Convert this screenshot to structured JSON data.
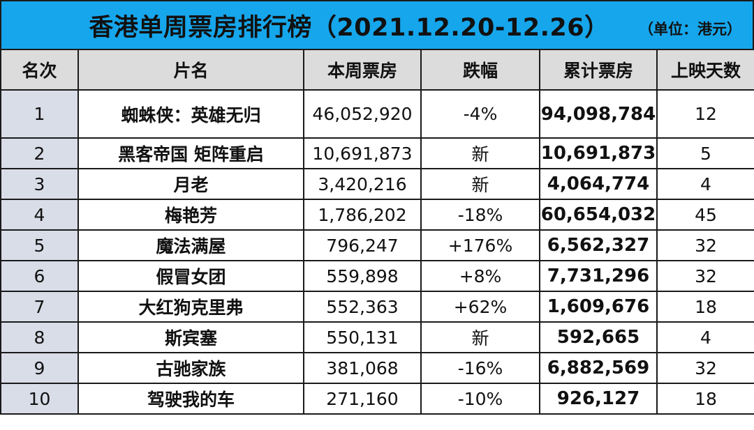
{
  "header": {
    "title": "香港单周票房排行榜（2021.12.20-12.26）",
    "unit": "（单位：港元）",
    "accent_color": "#16a6ec"
  },
  "table": {
    "columns": [
      "名次",
      "片名",
      "本周票房",
      "跌幅",
      "累计票房",
      "上映天数"
    ],
    "rows": [
      {
        "rank": "1",
        "film": "蜘蛛侠：英雄无归",
        "week": "46,052,920",
        "change": "-4%",
        "total": "94,098,784",
        "days": "12"
      },
      {
        "rank": "2",
        "film": "黑客帝国 矩阵重启",
        "week": "10,691,873",
        "change": "新",
        "total": "10,691,873",
        "days": "5"
      },
      {
        "rank": "3",
        "film": "月老",
        "week": "3,420,216",
        "change": "新",
        "total": "4,064,774",
        "days": "4"
      },
      {
        "rank": "4",
        "film": "梅艳芳",
        "week": "1,786,202",
        "change": "-18%",
        "total": "60,654,032",
        "days": "45"
      },
      {
        "rank": "5",
        "film": "魔法满屋",
        "week": "796,247",
        "change": "+176%",
        "total": "6,562,327",
        "days": "32"
      },
      {
        "rank": "6",
        "film": "假冒女团",
        "week": "559,898",
        "change": "+8%",
        "total": "7,731,296",
        "days": "32"
      },
      {
        "rank": "7",
        "film": "大红狗克里弗",
        "week": "552,363",
        "change": "+62%",
        "total": "1,609,676",
        "days": "18"
      },
      {
        "rank": "8",
        "film": "斯宾塞",
        "week": "550,131",
        "change": "新",
        "total": "592,665",
        "days": "4"
      },
      {
        "rank": "9",
        "film": "古驰家族",
        "week": "381,068",
        "change": "-16%",
        "total": "6,882,569",
        "days": "32"
      },
      {
        "rank": "10",
        "film": "驾驶我的车",
        "week": "271,160",
        "change": "-10%",
        "total": "926,127",
        "days": "18"
      }
    ]
  }
}
